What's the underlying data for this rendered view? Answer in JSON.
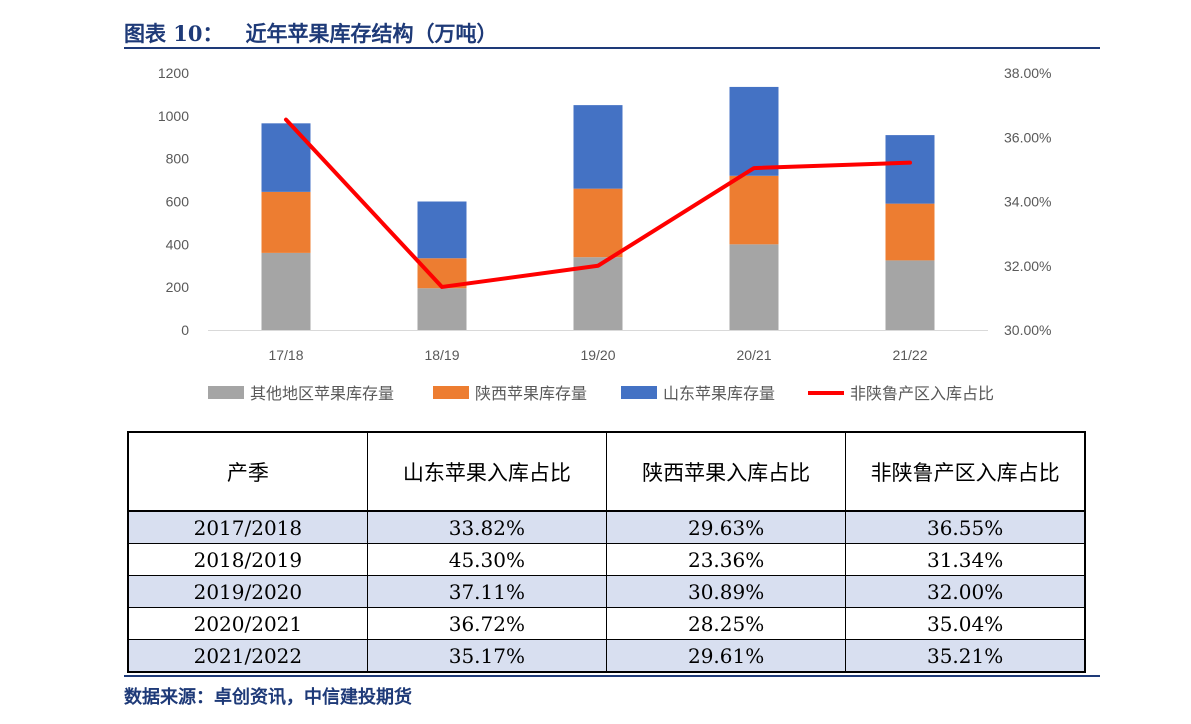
{
  "figure": {
    "title": "图表 10：   近年苹果库存结构（万吨）",
    "source": "数据来源：卓创资讯，中信建投期货"
  },
  "chart_data": {
    "type": "bar",
    "stacked": true,
    "categories": [
      "17/18",
      "18/19",
      "19/20",
      "20/21",
      "21/22"
    ],
    "series": [
      {
        "name": "其他地区苹果库存量",
        "kind": "bar",
        "color": "#a5a5a5",
        "values": [
          360,
          195,
          340,
          400,
          325
        ]
      },
      {
        "name": "陕西苹果库存量",
        "kind": "bar",
        "color": "#ed7d31",
        "values": [
          285,
          140,
          320,
          320,
          265
        ]
      },
      {
        "name": "山东苹果库存量",
        "kind": "bar",
        "color": "#4472c4",
        "values": [
          320,
          265,
          390,
          415,
          320
        ]
      },
      {
        "name": "非陕鲁产区入库占比",
        "kind": "line",
        "axis": "right",
        "color": "#ff0000",
        "values": [
          36.55,
          31.34,
          32.0,
          35.04,
          35.21
        ]
      }
    ],
    "left_axis": {
      "ylim": [
        0,
        1200
      ],
      "ticks": [
        "0",
        "200",
        "400",
        "600",
        "800",
        "1000",
        "1200"
      ]
    },
    "right_axis": {
      "ylim": [
        30,
        38
      ],
      "ticks": [
        "30.00%",
        "32.00%",
        "34.00%",
        "36.00%",
        "38.00%"
      ]
    },
    "grid": false,
    "legend_position": "bottom"
  },
  "table": {
    "headers": [
      "产季",
      "山东苹果入库占比",
      "陕西苹果入库占比",
      "非陕鲁产区入库占比"
    ],
    "rows": [
      [
        "2017/2018",
        "33.82%",
        "29.63%",
        "36.55%"
      ],
      [
        "2018/2019",
        "45.30%",
        "23.36%",
        "31.34%"
      ],
      [
        "2019/2020",
        "37.11%",
        "30.89%",
        "32.00%"
      ],
      [
        "2020/2021",
        "36.72%",
        "28.25%",
        "35.04%"
      ],
      [
        "2021/2022",
        "35.17%",
        "29.61%",
        "35.21%"
      ]
    ]
  }
}
